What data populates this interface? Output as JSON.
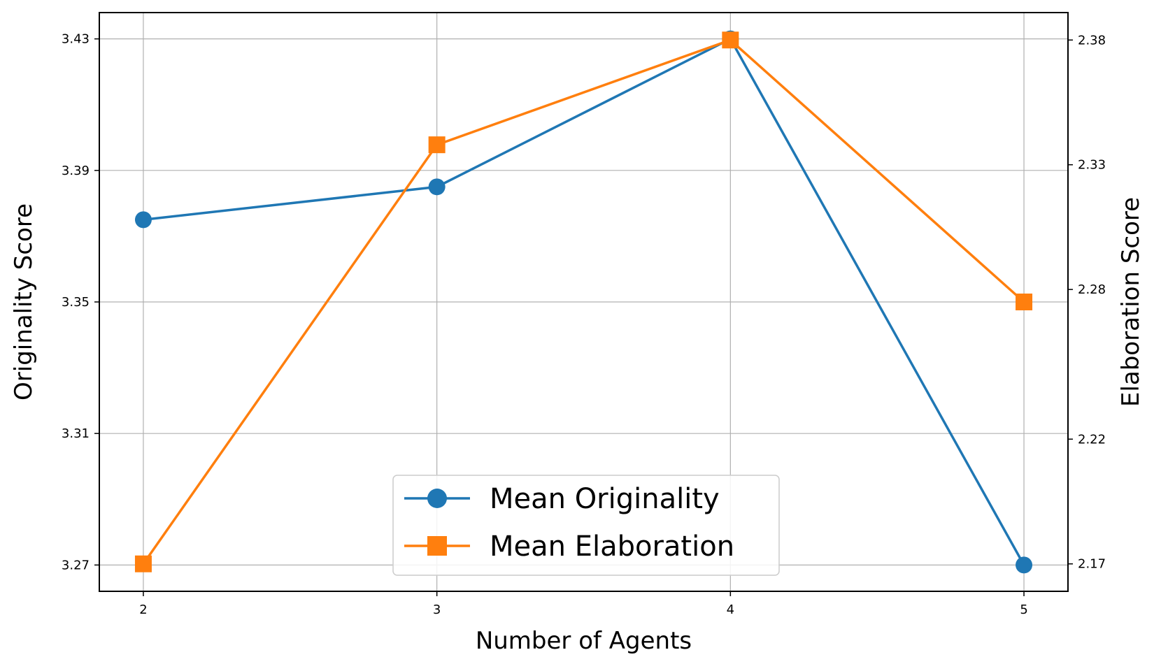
{
  "chart_data": {
    "type": "line",
    "xlabel": "Number of Agents",
    "ylabel_left": "Originality Score",
    "ylabel_right": "Elaboration Score",
    "x": [
      2,
      3,
      4,
      5
    ],
    "x_ticks": [
      "2",
      "3",
      "4",
      "5"
    ],
    "xlim": [
      1.85,
      5.15
    ],
    "ylim_left": [
      3.262,
      3.438
    ],
    "ylim_right": [
      2.159,
      2.391
    ],
    "y_left_ticks": [
      3.27,
      3.31,
      3.35,
      3.39,
      3.43
    ],
    "y_left_tick_labels": [
      "3.27",
      "3.31",
      "3.35",
      "3.39",
      "3.43"
    ],
    "y_right_ticks": [
      2.17,
      2.22,
      2.28,
      2.33,
      2.38
    ],
    "y_right_tick_labels": [
      "2.17",
      "2.22",
      "2.28",
      "2.33",
      "2.38"
    ],
    "grid": true,
    "legend_position": "bottom-center",
    "series": [
      {
        "name": "Mean Originality",
        "axis": "left",
        "marker": "circle",
        "color": "#1f77b4",
        "values": [
          3.375,
          3.385,
          3.43,
          3.27
        ]
      },
      {
        "name": "Mean Elaboration",
        "axis": "right",
        "marker": "square",
        "color": "#ff7f0e",
        "values": [
          2.17,
          2.338,
          2.38,
          2.275
        ]
      }
    ]
  }
}
